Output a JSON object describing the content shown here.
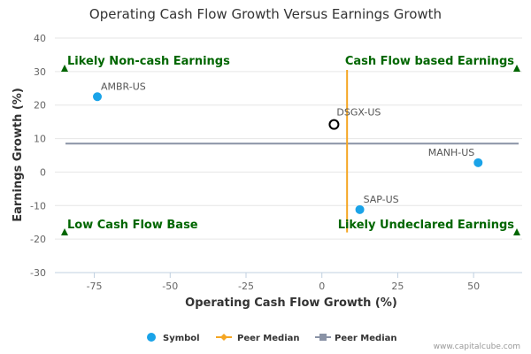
{
  "chart_data": {
    "type": "scatter",
    "title": "Operating Cash Flow Growth Versus Earnings Growth",
    "xlabel": "Operating Cash Flow Growth (%)",
    "ylabel": "Earnings Growth (%)",
    "xlim": [
      -88,
      66
    ],
    "ylim": [
      -30,
      40
    ],
    "xticks": [
      -75,
      -50,
      -25,
      0,
      25,
      50
    ],
    "yticks": [
      40,
      30,
      20,
      10,
      0,
      -10,
      -20,
      -30
    ],
    "grid": true,
    "points": [
      {
        "label": "AMBR-US",
        "x": -74.0,
        "y": 22.5,
        "style": "filled",
        "color": "#1aa3e8"
      },
      {
        "label": "DSGX-US",
        "x": 4.0,
        "y": 14.2,
        "style": "hollow",
        "color": "#000000"
      },
      {
        "label": "MANH-US",
        "x": 51.5,
        "y": 2.8,
        "style": "filled",
        "color": "#1aa3e8"
      },
      {
        "label": "SAP-US",
        "x": 12.5,
        "y": -11.2,
        "style": "filled",
        "color": "#1aa3e8"
      }
    ],
    "peer_median_x": {
      "value": 8.3,
      "y_range": [
        -18,
        30.5
      ],
      "color": "#f5a623"
    },
    "peer_median_y": {
      "value": 8.5,
      "x_range": [
        -88,
        66
      ],
      "color": "#8a93a6"
    },
    "quadrant_labels": [
      {
        "text": "Likely Non-cash Earnings",
        "position": "top-left"
      },
      {
        "text": "Cash Flow based Earnings",
        "position": "top-right"
      },
      {
        "text": "Low Cash Flow Base",
        "position": "bottom-left"
      },
      {
        "text": "Likely Undeclared Earnings",
        "position": "bottom-right"
      }
    ],
    "quadrant_color": "#006600",
    "legend": [
      {
        "name": "Symbol",
        "marker": "circle",
        "color": "#1aa3e8"
      },
      {
        "name": "Peer Median",
        "marker": "diamond-line",
        "color": "#f5a623"
      },
      {
        "name": "Peer Median",
        "marker": "square-line",
        "color": "#8a93a6"
      }
    ],
    "legend_position": "bottom-center",
    "credit": "www.capitalcube.com"
  }
}
